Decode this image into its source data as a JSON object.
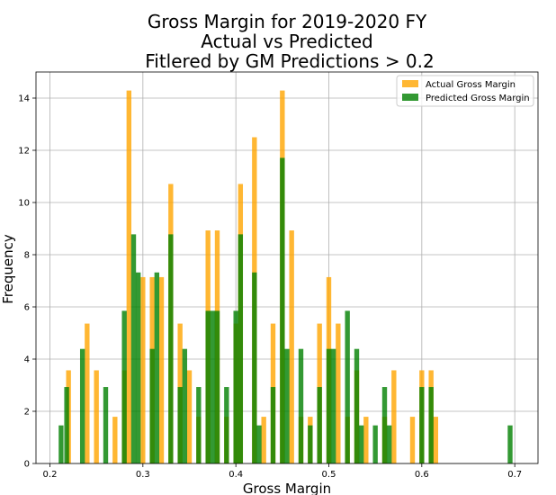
{
  "chart_data": {
    "type": "bar",
    "title_lines": [
      "Gross Margin for 2019-2020 FY",
      "Actual vs Predicted",
      "Fitlered by GM Predictions > 0.2"
    ],
    "xlabel": "Gross Margin",
    "ylabel": "Frequency",
    "xlim": [
      0.185,
      0.725
    ],
    "ylim": [
      0,
      15
    ],
    "xticks": [
      0.2,
      0.3,
      0.4,
      0.5,
      0.6,
      0.7
    ],
    "yticks": [
      0,
      2,
      4,
      6,
      8,
      10,
      12,
      14
    ],
    "grid": true,
    "legend_position": "top-right",
    "bin_width": 0.0052,
    "series": [
      {
        "name": "Actual Gross Margin",
        "color": "#ffa500",
        "opacity": 0.8,
        "x": [
          0.22,
          0.24,
          0.25,
          0.27,
          0.28,
          0.285,
          0.3,
          0.31,
          0.32,
          0.33,
          0.34,
          0.35,
          0.36,
          0.37,
          0.38,
          0.39,
          0.4,
          0.405,
          0.42,
          0.43,
          0.44,
          0.45,
          0.46,
          0.47,
          0.48,
          0.49,
          0.5,
          0.51,
          0.52,
          0.53,
          0.54,
          0.56,
          0.57,
          0.59,
          0.6,
          0.61,
          0.615
        ],
        "values": [
          3.57,
          5.36,
          3.57,
          1.79,
          3.57,
          14.29,
          7.14,
          7.14,
          7.14,
          10.71,
          5.36,
          3.57,
          1.79,
          8.93,
          8.93,
          1.79,
          5.36,
          10.71,
          12.5,
          1.79,
          5.36,
          14.29,
          8.93,
          1.79,
          1.79,
          5.36,
          7.14,
          5.36,
          1.79,
          3.57,
          1.79,
          1.79,
          3.57,
          1.79,
          3.57,
          3.57,
          1.79
        ]
      },
      {
        "name": "Predicted Gross Margin",
        "color": "#008000",
        "opacity": 0.8,
        "x": [
          0.212,
          0.218,
          0.235,
          0.26,
          0.28,
          0.29,
          0.295,
          0.31,
          0.315,
          0.33,
          0.34,
          0.345,
          0.36,
          0.37,
          0.375,
          0.38,
          0.39,
          0.4,
          0.405,
          0.42,
          0.425,
          0.44,
          0.45,
          0.455,
          0.47,
          0.48,
          0.49,
          0.5,
          0.505,
          0.52,
          0.53,
          0.535,
          0.55,
          0.56,
          0.565,
          0.6,
          0.61,
          0.695
        ],
        "values": [
          1.46,
          2.93,
          4.39,
          2.93,
          5.85,
          8.78,
          7.32,
          4.39,
          7.32,
          8.78,
          2.93,
          4.39,
          2.93,
          5.85,
          5.85,
          5.85,
          2.93,
          5.85,
          8.78,
          7.32,
          1.46,
          2.93,
          11.71,
          4.39,
          4.39,
          1.46,
          2.93,
          4.39,
          4.39,
          5.85,
          4.39,
          1.46,
          1.46,
          2.93,
          1.46,
          2.93,
          2.93,
          1.46
        ]
      }
    ]
  }
}
